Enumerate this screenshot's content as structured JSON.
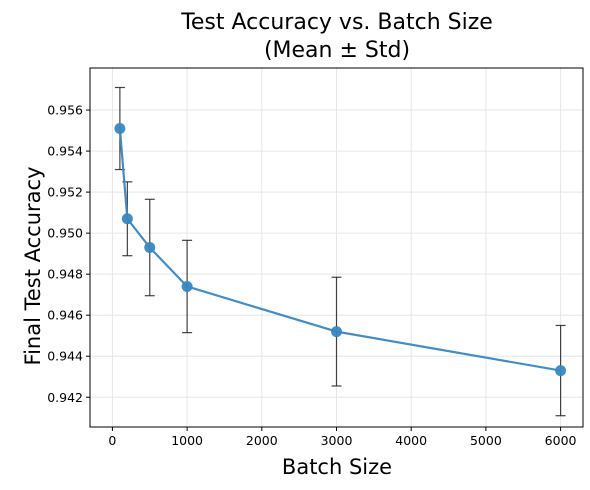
{
  "chart_data": {
    "type": "line",
    "title_line1": "Test Accuracy vs. Batch Size",
    "title_line2": "(Mean ± Std)",
    "xlabel": "Batch Size",
    "ylabel": "Final Test Accuracy",
    "xlim": [
      -300,
      6300
    ],
    "ylim": [
      0.94055,
      0.95805
    ],
    "xticks": [
      0,
      1000,
      2000,
      3000,
      4000,
      5000,
      6000
    ],
    "xtick_labels": [
      "0",
      "1000",
      "2000",
      "3000",
      "4000",
      "5000",
      "6000"
    ],
    "yticks": [
      0.942,
      0.944,
      0.946,
      0.948,
      0.95,
      0.952,
      0.954,
      0.956
    ],
    "ytick_labels": [
      "0.942",
      "0.944",
      "0.946",
      "0.948",
      "0.950",
      "0.952",
      "0.954",
      "0.956"
    ],
    "grid": true,
    "series": [
      {
        "x": [
          100,
          200,
          500,
          1000,
          3000,
          6000
        ],
        "y": [
          0.9551,
          0.9507,
          0.9493,
          0.9474,
          0.9452,
          0.9433
        ],
        "err": [
          0.002,
          0.0018,
          0.00235,
          0.00225,
          0.00265,
          0.0022
        ],
        "color": "#3a87bf",
        "errcolor": "#222222"
      }
    ]
  }
}
